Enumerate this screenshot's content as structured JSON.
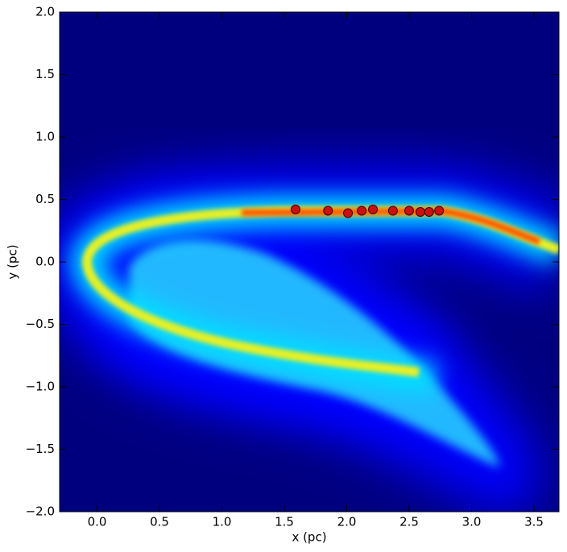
{
  "chart_data": {
    "type": "scatter",
    "x_label": "x (pc)",
    "y_label": "y (pc)",
    "x": [
      1.59,
      1.85,
      2.01,
      2.12,
      2.21,
      2.37,
      2.5,
      2.59,
      2.66,
      2.74
    ],
    "values": [
      0.42,
      0.41,
      0.39,
      0.41,
      0.42,
      0.41,
      0.41,
      0.4,
      0.4,
      0.41
    ],
    "color": "#cc1010",
    "xlim": [
      -0.3,
      3.7
    ],
    "ylim": [
      -2.0,
      2.0
    ],
    "xticks": [
      {
        "value": 0,
        "label": "0.0"
      },
      {
        "value": 0.5,
        "label": "0.5"
      },
      {
        "value": 1,
        "label": "1.0"
      },
      {
        "value": 1.5,
        "label": "1.5"
      },
      {
        "value": 2,
        "label": "2.0"
      },
      {
        "value": 2.5,
        "label": "2.5"
      },
      {
        "value": 3,
        "label": "3.0"
      },
      {
        "value": 3.5,
        "label": "3.5"
      }
    ],
    "yticks": [
      {
        "value": -2,
        "label": "−2.0"
      },
      {
        "value": -1.5,
        "label": "−1.5"
      },
      {
        "value": -1,
        "label": "−1.0"
      },
      {
        "value": -0.5,
        "label": "−0.5"
      },
      {
        "value": 0,
        "label": "0.0"
      },
      {
        "value": 0.5,
        "label": "0.5"
      },
      {
        "value": 1,
        "label": "1.0"
      },
      {
        "value": 1.5,
        "label": "1.5"
      },
      {
        "value": 2,
        "label": "2.0"
      }
    ]
  }
}
